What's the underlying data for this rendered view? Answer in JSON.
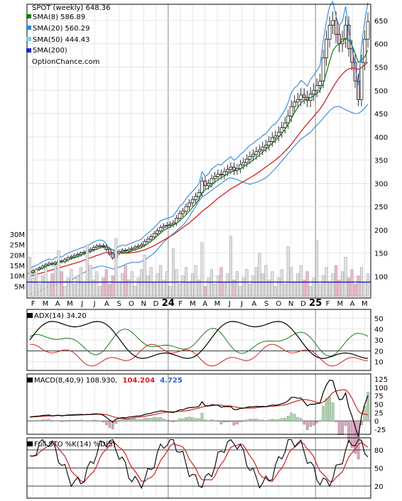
{
  "chart_data": {
    "type": "line",
    "title": "SPOT (weekly) 648.36",
    "watermark": "OptionChance.com",
    "x_ticks": [
      "F",
      "M",
      "A",
      "M",
      "J",
      "J",
      "A",
      "S",
      "O",
      "N",
      "D",
      "24",
      "F",
      "M",
      "A",
      "M",
      "J",
      "J",
      "A",
      "S",
      "O",
      "N",
      "D",
      "25",
      "F",
      "M",
      "A",
      "M"
    ],
    "price": {
      "y_ticks": [
        100,
        150,
        200,
        250,
        300,
        350,
        400,
        450,
        500,
        550,
        600,
        650
      ],
      "ylim": [
        90,
        685
      ],
      "legend": [
        {
          "key": "sma8",
          "label": "SMA(8) 586.89",
          "color": "#1a7a1a"
        },
        {
          "key": "sma20",
          "label": "SMA(20) 560.29",
          "color": "#3388dd"
        },
        {
          "key": "sma50",
          "label": "SMA(50) 444.43",
          "color": "#88c8f0"
        },
        {
          "key": "sma200",
          "label": "SMA(200)",
          "color": "#2222cc"
        }
      ],
      "close": [
        108,
        112,
        115,
        118,
        122,
        125,
        128,
        126,
        130,
        133,
        132,
        136,
        140,
        142,
        145,
        147,
        150,
        152,
        155,
        158,
        162,
        165,
        166,
        165,
        158,
        148,
        140,
        150,
        153,
        156,
        155,
        158,
        160,
        163,
        165,
        168,
        175,
        180,
        185,
        192,
        198,
        205,
        208,
        210,
        212,
        215,
        225,
        235,
        240,
        250,
        258,
        265,
        272,
        280,
        305,
        295,
        300,
        310,
        315,
        320,
        318,
        325,
        330,
        335,
        328,
        332,
        340,
        345,
        352,
        358,
        362,
        368,
        372,
        378,
        382,
        390,
        398,
        402,
        410,
        420,
        430,
        445,
        465,
        475,
        480,
        490,
        485,
        478,
        492,
        500,
        510,
        520,
        570,
        610,
        640,
        650,
        620,
        600,
        610,
        640,
        590,
        560,
        520,
        480,
        560,
        610,
        648
      ],
      "sma8": [
        106,
        109,
        112,
        115,
        118,
        121,
        124,
        126,
        127,
        129,
        131,
        132,
        135,
        138,
        140,
        142,
        145,
        148,
        150,
        153,
        156,
        158,
        161,
        163,
        162,
        160,
        157,
        155,
        153,
        151,
        151,
        152,
        155,
        157,
        159,
        162,
        166,
        170,
        175,
        181,
        187,
        193,
        199,
        203,
        206,
        210,
        214,
        220,
        226,
        233,
        240,
        248,
        256,
        265,
        280,
        286,
        290,
        296,
        302,
        308,
        312,
        316,
        320,
        325,
        326,
        328,
        331,
        335,
        340,
        345,
        350,
        355,
        361,
        367,
        373,
        379,
        386,
        392,
        399,
        407,
        416,
        427,
        440,
        452,
        463,
        473,
        479,
        481,
        484,
        488,
        493,
        500,
        515,
        538,
        562,
        585,
        595,
        600,
        605,
        612,
        608,
        597,
        580,
        560,
        565,
        572,
        587
      ],
      "sma20": [
        100,
        102,
        104,
        106,
        108,
        110,
        112,
        114,
        116,
        118,
        120,
        122,
        124,
        126,
        128,
        130,
        132,
        135,
        137,
        140,
        142,
        145,
        147,
        150,
        151,
        151,
        151,
        150,
        150,
        150,
        150,
        150,
        151,
        152,
        153,
        155,
        157,
        160,
        163,
        166,
        170,
        174,
        178,
        182,
        186,
        190,
        195,
        200,
        205,
        210,
        215,
        221,
        227,
        233,
        240,
        245,
        250,
        256,
        262,
        268,
        273,
        278,
        283,
        288,
        292,
        296,
        300,
        304,
        308,
        312,
        316,
        320,
        325,
        330,
        335,
        340,
        345,
        350,
        356,
        362,
        369,
        376,
        384,
        393,
        402,
        411,
        420,
        428,
        436,
        444,
        452,
        460,
        470,
        482,
        494,
        506,
        517,
        527,
        535,
        542,
        546,
        548,
        547,
        545,
        549,
        555,
        560
      ],
      "sma50": [
        null,
        null,
        null,
        null,
        null,
        null,
        null,
        null,
        null,
        null,
        null,
        null,
        null,
        null,
        null,
        null,
        null,
        null,
        null,
        null,
        null,
        null,
        null,
        null,
        null,
        null,
        null,
        null,
        null,
        null,
        null,
        null,
        null,
        null,
        null,
        null,
        null,
        null,
        null,
        null,
        null,
        null,
        null,
        null,
        null,
        null,
        null,
        null,
        null,
        null,
        null,
        null,
        null,
        null,
        null,
        null,
        null,
        null,
        null,
        null,
        null,
        null,
        null,
        null,
        null,
        null,
        null,
        null,
        null,
        null,
        null,
        null,
        null,
        null,
        null,
        null,
        null,
        null,
        null,
        null,
        null,
        null,
        null,
        null,
        null,
        null,
        null,
        null,
        null,
        null,
        null,
        null,
        null,
        null,
        null,
        null,
        null,
        null,
        null,
        null,
        null,
        null,
        null,
        null,
        null,
        null,
        null
      ],
      "sma200": [
        null,
        null,
        null,
        null,
        null,
        null,
        null,
        null,
        null,
        null,
        null,
        null,
        null,
        null,
        null,
        null,
        null,
        null,
        null,
        null,
        null,
        null,
        null,
        null,
        null,
        null,
        null,
        null,
        null,
        null,
        null,
        null,
        null,
        null,
        null,
        null,
        null,
        null,
        null,
        null,
        null,
        null,
        null,
        null,
        null,
        null,
        null,
        null,
        null,
        null,
        null,
        null,
        null,
        null,
        null,
        null,
        null,
        null,
        null,
        null,
        null,
        null,
        null,
        null,
        null,
        null,
        null,
        null,
        null,
        null,
        null,
        null,
        null,
        null,
        null,
        null,
        null,
        null,
        null,
        null,
        null,
        null,
        null,
        null,
        null,
        null,
        null,
        null,
        null,
        null,
        null,
        null,
        null,
        null,
        null,
        null,
        null,
        null,
        null,
        null,
        null,
        null,
        null,
        null,
        null,
        null,
        null
      ],
      "lower_band": [
        60,
        64,
        66,
        68,
        72,
        75,
        78,
        80,
        82,
        84,
        86,
        88,
        90,
        92,
        96,
        100,
        104,
        108,
        112,
        116,
        118,
        120,
        122,
        122,
        120,
        118,
        116,
        118,
        120,
        122,
        126,
        128,
        130,
        130,
        130,
        132,
        135,
        140,
        145,
        150,
        158,
        166,
        174,
        180,
        186,
        192,
        198,
        204,
        210,
        218,
        228,
        240,
        250,
        262,
        270,
        275,
        280,
        285,
        290,
        295,
        300,
        305,
        310,
        312,
        310,
        308,
        305,
        302,
        300,
        298,
        300,
        302,
        305,
        308,
        312,
        318,
        325,
        332,
        340,
        348,
        356,
        364,
        372,
        380,
        388,
        395,
        400,
        405,
        410,
        418,
        425,
        432,
        440,
        448,
        456,
        462,
        465,
        465,
        462,
        458,
        455,
        452,
        450,
        450,
        455,
        462,
        470
      ]
    },
    "volume": {
      "y_ticks": [
        "5M",
        "10M",
        "15M",
        "20M",
        "25M",
        "30M"
      ],
      "ylim": [
        0,
        30
      ]
    },
    "adx": {
      "label": "ADX(14) 34.20",
      "y_ticks": [
        10,
        20,
        30,
        40,
        50
      ],
      "ylim": [
        2,
        58
      ]
    },
    "macd": {
      "label": "MACD(8,40,9) 108.930,",
      "value2": "104.204",
      "value3": "4.725",
      "y_ticks": [
        -25,
        0,
        25,
        50,
        75,
        100,
        125
      ],
      "ylim": [
        -40,
        140
      ]
    },
    "stoch": {
      "label": "Full STO %K(14) %D(5)",
      "y_ticks": [
        20,
        50,
        80
      ],
      "ylim": [
        0,
        100
      ]
    },
    "colors": {
      "up": "#e6e6a0",
      "down": "#f0b8c8",
      "grid": "#dddddd",
      "black": "#000000",
      "red": "#cc2222",
      "green": "#1a7a1a",
      "blue": "#3388dd"
    }
  }
}
